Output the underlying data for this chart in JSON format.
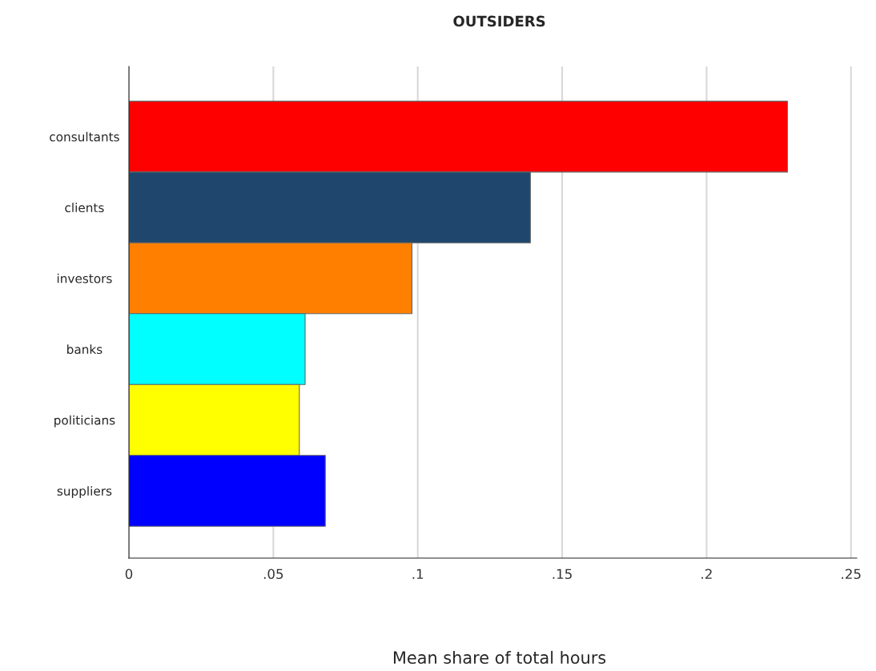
{
  "chart_data": {
    "type": "bar",
    "orientation": "horizontal",
    "title": "OUTSIDERS",
    "xlabel": "Mean share of total hours",
    "categories": [
      "consultants",
      "clients",
      "investors",
      "banks",
      "politicians",
      "suppliers"
    ],
    "values": [
      0.228,
      0.139,
      0.098,
      0.061,
      0.059,
      0.068
    ],
    "colors": [
      "#ff0000",
      "#1f476e",
      "#ff8000",
      "#00ffff",
      "#ffff00",
      "#0000ff"
    ],
    "xlim": [
      0,
      0.252
    ],
    "xticks": [
      0,
      {
        "value": 0.05,
        "label": ".05"
      },
      {
        "value": 0.1,
        "label": ".1"
      },
      {
        "value": 0.15,
        "label": ".15"
      },
      {
        "value": 0.2,
        "label": ".2"
      },
      {
        "value": 0.25,
        "label": ".25"
      }
    ],
    "grid": "x"
  }
}
